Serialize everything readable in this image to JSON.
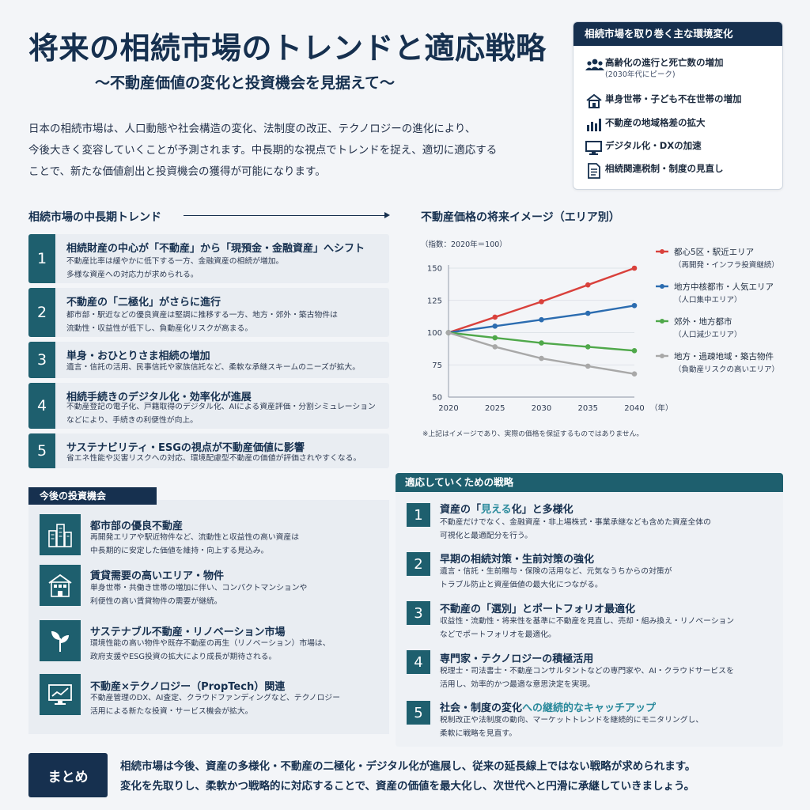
{
  "header": {
    "title": "将来の相続市場のトレンドと適応戦略",
    "subtitle": "〜不動産価値の変化と投資機会を見据えて〜",
    "intro_lines": [
      "日本の相続市場は、人口動態や社会構造の変化、法制度の改正、テクノロジーの進化により、",
      "今後大きく変容していくことが予測されます。中長期的な視点でトレンドを捉え、適切に適応する",
      "ことで、新たな価値創出と投資機会の獲得が可能になります。"
    ]
  },
  "environment": {
    "heading": "相続市場を取り巻く主な環境変化",
    "items": [
      {
        "icon": "people-icon",
        "label": "高齢化の進行と死亡数の増加",
        "sub": "(2030年代にピーク)"
      },
      {
        "icon": "house-icon",
        "label": "単身世帯・子ども不在世帯の増加",
        "sub": ""
      },
      {
        "icon": "bar-chart-icon",
        "label": "不動産の地域格差の拡大",
        "sub": ""
      },
      {
        "icon": "monitor-icon",
        "label": "デジタル化・DXの加速",
        "sub": ""
      },
      {
        "icon": "document-icon",
        "label": "相続関連税制・制度の見直し",
        "sub": ""
      }
    ]
  },
  "trends": {
    "heading": "相続市場の中長期トレンド",
    "items": [
      {
        "num": "1",
        "title": "相続財産の中心が「不動産」から「現預金・金融資産」へシフト",
        "desc": [
          "不動産比率は緩やかに低下する一方、金融資産の相続が増加。",
          "多様な資産への対応力が求められる。"
        ]
      },
      {
        "num": "2",
        "title": "不動産の「二極化」がさらに進行",
        "desc": [
          "都市部・駅近などの優良資産は堅調に推移する一方、地方・郊外・築古物件は",
          "流動性・収益性が低下し、負動産化リスクが高まる。"
        ]
      },
      {
        "num": "3",
        "title": "単身・おひとりさま相続の増加",
        "desc": [
          "遺言・信託の活用、民事信託や家族信託など、柔軟な承継スキームのニーズが拡大。"
        ]
      },
      {
        "num": "4",
        "title": "相続手続きのデジタル化・効率化が進展",
        "desc": [
          "不動産登記の電子化、戸籍取得のデジタル化、AIによる資産評価・分割シミュレーション",
          "などにより、手続きの利便性が向上。"
        ]
      },
      {
        "num": "5",
        "title": "サステナビリティ・ESGの視点が不動産価値に影響",
        "desc": [
          "省エネ性能や災害リスクへの対応、環境配慮型不動産の価値が評価されやすくなる。"
        ]
      }
    ]
  },
  "chart": {
    "heading": "不動産価格の将来イメージ（エリア別）",
    "index_label": "（指数：2020年＝100）",
    "x_unit": "（年）",
    "note": "※上記はイメージであり、実際の価格を保証するものではありません。"
  },
  "chart_data": {
    "type": "line",
    "x": [
      2020,
      2025,
      2030,
      2035,
      2040
    ],
    "ylim": [
      50,
      150
    ],
    "yticks": [
      50,
      75,
      100,
      125,
      150
    ],
    "grid": true,
    "legend_position": "right",
    "series": [
      {
        "name": "都心5区・駅近エリア",
        "sub": "（再開発・インフラ投資継続）",
        "color": "#d9413c",
        "values": [
          100,
          112,
          124,
          137,
          150
        ]
      },
      {
        "name": "地方中核都市・人気エリア",
        "sub": "（人口集中エリア）",
        "color": "#2b6cb0",
        "values": [
          100,
          105,
          110,
          115,
          121
        ]
      },
      {
        "name": "郊外・地方都市",
        "sub": "（人口減少エリア）",
        "color": "#4fa84a",
        "values": [
          100,
          96,
          92,
          89,
          86
        ]
      },
      {
        "name": "地方・過疎地域・築古物件",
        "sub": "（負動産リスクの高いエリア）",
        "color": "#a8a8a8",
        "values": [
          100,
          89,
          80,
          74,
          68
        ]
      }
    ]
  },
  "investment": {
    "heading": "今後の投資機会",
    "items": [
      {
        "icon": "city-buildings-icon",
        "title": "都市部の優良不動産",
        "desc": [
          "再開発エリアや駅近物件など、流動性と収益性の高い資産は",
          "中長期的に安定した価値を維持・向上する見込み。"
        ]
      },
      {
        "icon": "apartment-icon",
        "title": "賃貸需要の高いエリア・物件",
        "desc": [
          "単身世帯・共働き世帯の増加に伴い、コンパクトマンションや",
          "利便性の高い賃貸物件の需要が継続。"
        ]
      },
      {
        "icon": "sprout-icon",
        "title": "サステナブル不動産・リノベーション市場",
        "desc": [
          "環境性能の高い物件や既存不動産の再生（リノベーション）市場は、",
          "政府支援やESG投資の拡大により成長が期待される。"
        ]
      },
      {
        "icon": "tech-chart-icon",
        "title": "不動産×テクノロジー（PropTech）関連",
        "desc": [
          "不動産管理のDX、AI査定、クラウドファンディングなど、テクノロジー",
          "活用による新たな投資・サービス機会が拡大。"
        ]
      }
    ]
  },
  "strategy": {
    "heading": "適応していくための戦略",
    "items": [
      {
        "num": "1",
        "title_parts": [
          "資産の「",
          "見える",
          "化」と多様化"
        ],
        "desc": [
          "不動産だけでなく、金融資産・非上場株式・事業承継なども含めた資産全体の",
          "可視化と最適配分を行う。"
        ]
      },
      {
        "num": "2",
        "title_parts": [
          "早期の相続対策・生前対策の強化",
          "",
          ""
        ],
        "desc": [
          "遺言・信託・生前贈与・保険の活用など、元気なうちからの対策が",
          "トラブル防止と資産価値の最大化につながる。"
        ]
      },
      {
        "num": "3",
        "title_parts": [
          "不動産の「選別」とポートフォリオ最適化",
          "",
          ""
        ],
        "desc": [
          "収益性・流動性・将来性を基準に不動産を見直し、売却・組み換え・リノベーション",
          "などでポートフォリオを最適化。"
        ]
      },
      {
        "num": "4",
        "title_parts": [
          "専門家・テクノロジーの積極活用",
          "",
          ""
        ],
        "desc": [
          "税理士・司法書士・不動産コンサルタントなどの専門家や、AI・クラウドサービスを",
          "活用し、効率的かつ最適な意思決定を実現。"
        ]
      },
      {
        "num": "5",
        "title_parts": [
          "社会・制度の変化",
          "への継続的なキャッチアップ",
          ""
        ],
        "desc": [
          "税制改正や法制度の動向、マーケットトレンドを継続的にモニタリングし、",
          "柔軟に戦略を見直す。"
        ]
      }
    ]
  },
  "summary": {
    "label": "まとめ",
    "lines": [
      "相続市場は今後、資産の多様化・不動産の二極化・デジタル化が進展し、従来の延長線上ではない戦略が求められます。",
      "変化を先取りし、柔軟かつ戦略的に対応することで、資産の価値を最大化し、次世代へと円滑に承継していきましょう。"
    ]
  }
}
